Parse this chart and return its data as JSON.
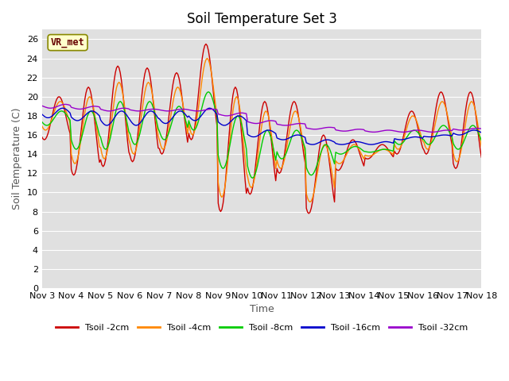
{
  "title": "Soil Temperature Set 3",
  "xlabel": "Time",
  "ylabel": "Soil Temperature (C)",
  "ylim": [
    0,
    27
  ],
  "yticks": [
    0,
    2,
    4,
    6,
    8,
    10,
    12,
    14,
    16,
    18,
    20,
    22,
    24,
    26
  ],
  "x_labels": [
    "Nov 3",
    "Nov 4",
    "Nov 5",
    "Nov 6",
    "Nov 7",
    "Nov 8",
    "Nov 9",
    "Nov 10",
    "Nov 11",
    "Nov 12",
    "Nov 13",
    "Nov 14",
    "Nov 15",
    "Nov 16",
    "Nov 17",
    "Nov 18"
  ],
  "colors": {
    "Tsoil -2cm": "#cc0000",
    "Tsoil -4cm": "#ff8800",
    "Tsoil -8cm": "#00cc00",
    "Tsoil -16cm": "#0000cc",
    "Tsoil -32cm": "#9900cc"
  },
  "legend_label_box_color": "#ffffcc",
  "legend_label_box_edge": "#888800",
  "legend_label": "VR_met",
  "plot_bg_color": "#e0e0e0",
  "grid_color": "#ffffff",
  "title_fontsize": 12,
  "axis_label_fontsize": 9,
  "tick_fontsize": 8
}
